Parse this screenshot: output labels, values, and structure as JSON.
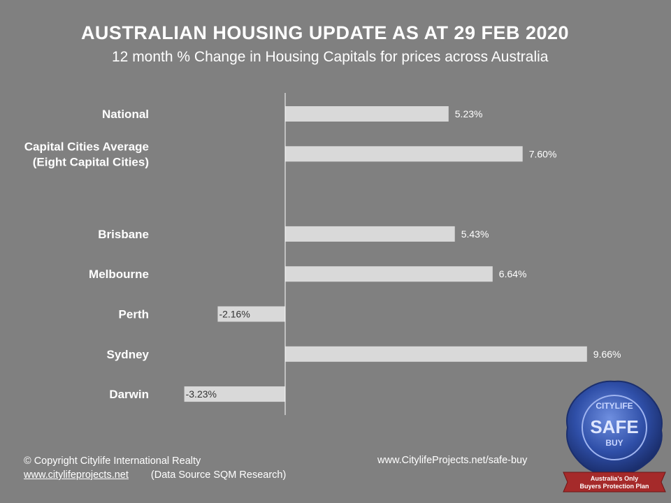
{
  "header": {
    "title": "AUSTRALIAN HOUSING UPDATE AS AT 29 FEB 2020",
    "subtitle": "12 month % Change in Housing Capitals for prices across Australia"
  },
  "chart_data": {
    "type": "bar",
    "orientation": "horizontal",
    "categories": [
      "National",
      "Capital Cities Average\n(Eight Capital Cities)",
      "",
      "Brisbane",
      "Melbourne",
      "Perth",
      "Sydney",
      "Darwin"
    ],
    "values": [
      5.23,
      7.6,
      null,
      5.43,
      6.64,
      -2.16,
      9.66,
      -3.23
    ],
    "data_labels": [
      "5.23%",
      "7.60%",
      "",
      "5.43%",
      "6.64%",
      "-2.16%",
      "9.66%",
      "-3.23%"
    ],
    "title": "AUSTRALIAN HOUSING UPDATE AS AT 29 FEB 2020",
    "subtitle": "12 month % Change in Housing Capitals for prices across Australia",
    "xlim": [
      -4.2,
      10.8
    ],
    "grid": false,
    "legend": "none",
    "bar_color": "#d9d9d9",
    "background": "#808080"
  },
  "footer": {
    "copyright": "© Copyright Citylife International  Realty",
    "website": "www.citylifeprojects.net",
    "source": "(Data Source SQM Research)",
    "safe_buy_url": "www.CitylifeProjects.net/safe-buy"
  },
  "seal": {
    "top_text": "CITYLIFE",
    "main_text": "SAFE",
    "sub_text": "BUY",
    "ribbon_line1": "Australia's Only",
    "ribbon_line2": "Buyers Protection Plan",
    "seal_color": "#2f4fa8",
    "ribbon_color": "#a52a2a"
  }
}
